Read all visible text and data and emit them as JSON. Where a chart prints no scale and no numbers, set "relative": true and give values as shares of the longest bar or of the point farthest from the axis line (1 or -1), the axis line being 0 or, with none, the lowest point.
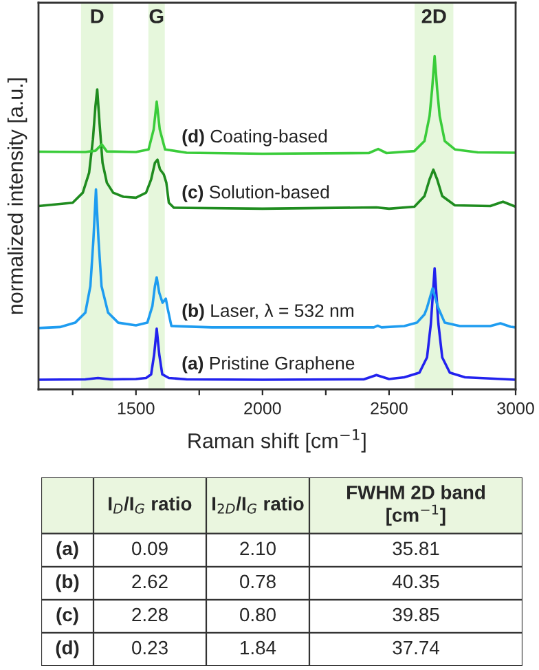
{
  "chart_data": [
    {
      "type": "line",
      "relative": true,
      "xlabel": "Raman shift [cm$^{−1}$]",
      "ylabel": "normalized intensity [a.u.]",
      "xlim": [
        1115,
        3000
      ],
      "xticks": [
        {
          "value": 1250,
          "label": null
        },
        1500,
        {
          "value": 1750,
          "label": null
        },
        2000,
        {
          "value": 2250,
          "label": null
        },
        2500,
        {
          "value": 2750,
          "label": null
        },
        3000
      ],
      "tick_labels": "x",
      "grid": false,
      "legend": false,
      "bands": [
        {
          "axis": "x",
          "from": 1283,
          "to": 1410,
          "label": "D",
          "color": "#e6f7dc"
        },
        {
          "axis": "x",
          "from": 1549,
          "to": 1614,
          "label": "G",
          "color": "#e6f7dc"
        },
        {
          "axis": "x",
          "from": 2601,
          "to": 2754,
          "label": "2D",
          "color": "#e6f7dc"
        }
      ],
      "series": [
        {
          "name": "(a) Pristine Graphene",
          "color": "#2222ee",
          "x": [
            1115,
            1300,
            1350,
            1400,
            1500,
            1540,
            1560,
            1572,
            1582,
            1592,
            1604,
            1630,
            1700,
            2000,
            2400,
            2450,
            2500,
            2560,
            2620,
            2650,
            2665,
            2680,
            2695,
            2710,
            2740,
            2800,
            3000
          ],
          "values": [
            0.029,
            0.03,
            0.034,
            0.03,
            0.031,
            0.034,
            0.045,
            0.105,
            0.182,
            0.105,
            0.045,
            0.034,
            0.03,
            0.029,
            0.03,
            0.043,
            0.031,
            0.036,
            0.05,
            0.096,
            0.196,
            0.363,
            0.196,
            0.096,
            0.05,
            0.036,
            0.029
          ]
        },
        {
          "name": "(b) Laser, λ = 532 nm",
          "color": "#1e9cf0",
          "x": [
            1115,
            1200,
            1260,
            1300,
            1320,
            1332,
            1342,
            1352,
            1364,
            1390,
            1430,
            1500,
            1545,
            1565,
            1575,
            1582,
            1592,
            1605,
            1618,
            1626,
            1640,
            1800,
            2440,
            2455,
            2470,
            2560,
            2610,
            2640,
            2650,
            2672,
            2694,
            2720,
            2780,
            2900,
            2940,
            2980,
            3000
          ],
          "values": [
            0.184,
            0.187,
            0.2,
            0.23,
            0.31,
            0.45,
            0.6,
            0.45,
            0.31,
            0.23,
            0.2,
            0.192,
            0.2,
            0.25,
            0.31,
            0.336,
            0.29,
            0.26,
            0.272,
            0.24,
            0.19,
            0.186,
            0.186,
            0.191,
            0.186,
            0.19,
            0.2,
            0.225,
            0.245,
            0.303,
            0.245,
            0.2,
            0.19,
            0.19,
            0.198,
            0.188,
            0.186
          ]
        },
        {
          "name": "(c) Solution-based",
          "color": "#1f8c1f",
          "x": [
            1115,
            1250,
            1290,
            1315,
            1330,
            1340,
            1347,
            1356,
            1368,
            1385,
            1410,
            1450,
            1500,
            1540,
            1560,
            1575,
            1585,
            1595,
            1610,
            1620,
            1630,
            1650,
            2000,
            2450,
            2500,
            2600,
            2640,
            2660,
            2675,
            2690,
            2710,
            2760,
            2900,
            2950,
            3000
          ],
          "values": [
            0.55,
            0.56,
            0.59,
            0.65,
            0.75,
            0.85,
            0.9,
            0.8,
            0.68,
            0.62,
            0.59,
            0.578,
            0.575,
            0.59,
            0.63,
            0.68,
            0.689,
            0.66,
            0.645,
            0.62,
            0.56,
            0.545,
            0.542,
            0.546,
            0.542,
            0.548,
            0.58,
            0.63,
            0.659,
            0.63,
            0.58,
            0.552,
            0.55,
            0.563,
            0.548
          ]
        },
        {
          "name": "(d) Coating-based",
          "color": "#3acc3a",
          "x": [
            1115,
            1300,
            1340,
            1365,
            1385,
            1500,
            1550,
            1570,
            1582,
            1594,
            1615,
            1700,
            2000,
            2420,
            2457,
            2490,
            2600,
            2640,
            2660,
            2670,
            2680,
            2690,
            2700,
            2720,
            2760,
            2850,
            3000
          ],
          "values": [
            0.713,
            0.712,
            0.716,
            0.735,
            0.714,
            0.712,
            0.72,
            0.78,
            0.863,
            0.78,
            0.72,
            0.71,
            0.707,
            0.709,
            0.721,
            0.709,
            0.715,
            0.745,
            0.82,
            0.9,
            1.0,
            0.9,
            0.82,
            0.745,
            0.72,
            0.711,
            0.71
          ]
        }
      ]
    },
    {
      "type": "other",
      "annotations": [
        "I$_{D}$/I$_{G}$ ratio",
        "I$_{2D}$/I$_{G}$ ratio",
        "FWHM 2D band [cm$^{−1}$]",
        "(a)",
        "0.09",
        "2.10",
        "35.81",
        "(b)",
        "2.62",
        "0.78",
        "40.35",
        "(c)",
        "2.28",
        "0.80",
        "39.85",
        "(d)",
        "0.23",
        "1.84",
        "37.74"
      ]
    }
  ]
}
